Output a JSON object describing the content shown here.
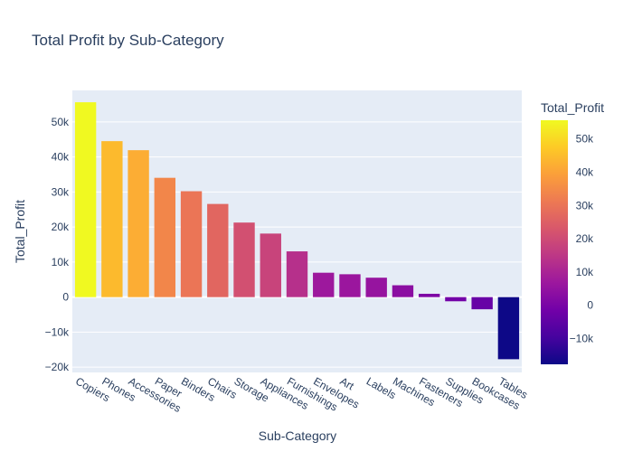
{
  "chart_data": {
    "type": "bar",
    "title": "Total Profit by Sub-Category",
    "xlabel": "Sub-Category",
    "ylabel": "Total_Profit",
    "colorbar_title": "Total_Profit",
    "categories": [
      "Copiers",
      "Phones",
      "Accessories",
      "Paper",
      "Binders",
      "Chairs",
      "Storage",
      "Appliances",
      "Furnishings",
      "Envelopes",
      "Art",
      "Labels",
      "Machines",
      "Fasteners",
      "Supplies",
      "Bookcases",
      "Tables"
    ],
    "values": [
      55618,
      44516,
      41937,
      34054,
      30222,
      26590,
      21279,
      18138,
      13059,
      6964,
      6528,
      5546,
      3385,
      950,
      -1189,
      -3473,
      -17725
    ],
    "ylim": [
      -21500,
      59000
    ],
    "yticks": [
      -20000,
      -10000,
      0,
      10000,
      20000,
      30000,
      40000,
      50000
    ],
    "ytick_labels": [
      "−20k",
      "−10k",
      "0",
      "10k",
      "20k",
      "30k",
      "40k",
      "50k"
    ],
    "colorbar_ticks": [
      -10000,
      0,
      10000,
      20000,
      30000,
      40000,
      50000
    ],
    "colorbar_tick_labels": [
      "−10k",
      "0",
      "10k",
      "20k",
      "30k",
      "40k",
      "50k"
    ],
    "color_range": [
      -17725,
      55618
    ],
    "colorscale": [
      "#0d0887",
      "#46039f",
      "#7201a8",
      "#9c179e",
      "#bd3786",
      "#d8576b",
      "#ed7953",
      "#fb9f3a",
      "#fdca26",
      "#f0f921"
    ],
    "plot_background": "#e5ecf6",
    "grid": true,
    "legend": "colorbar-right"
  }
}
